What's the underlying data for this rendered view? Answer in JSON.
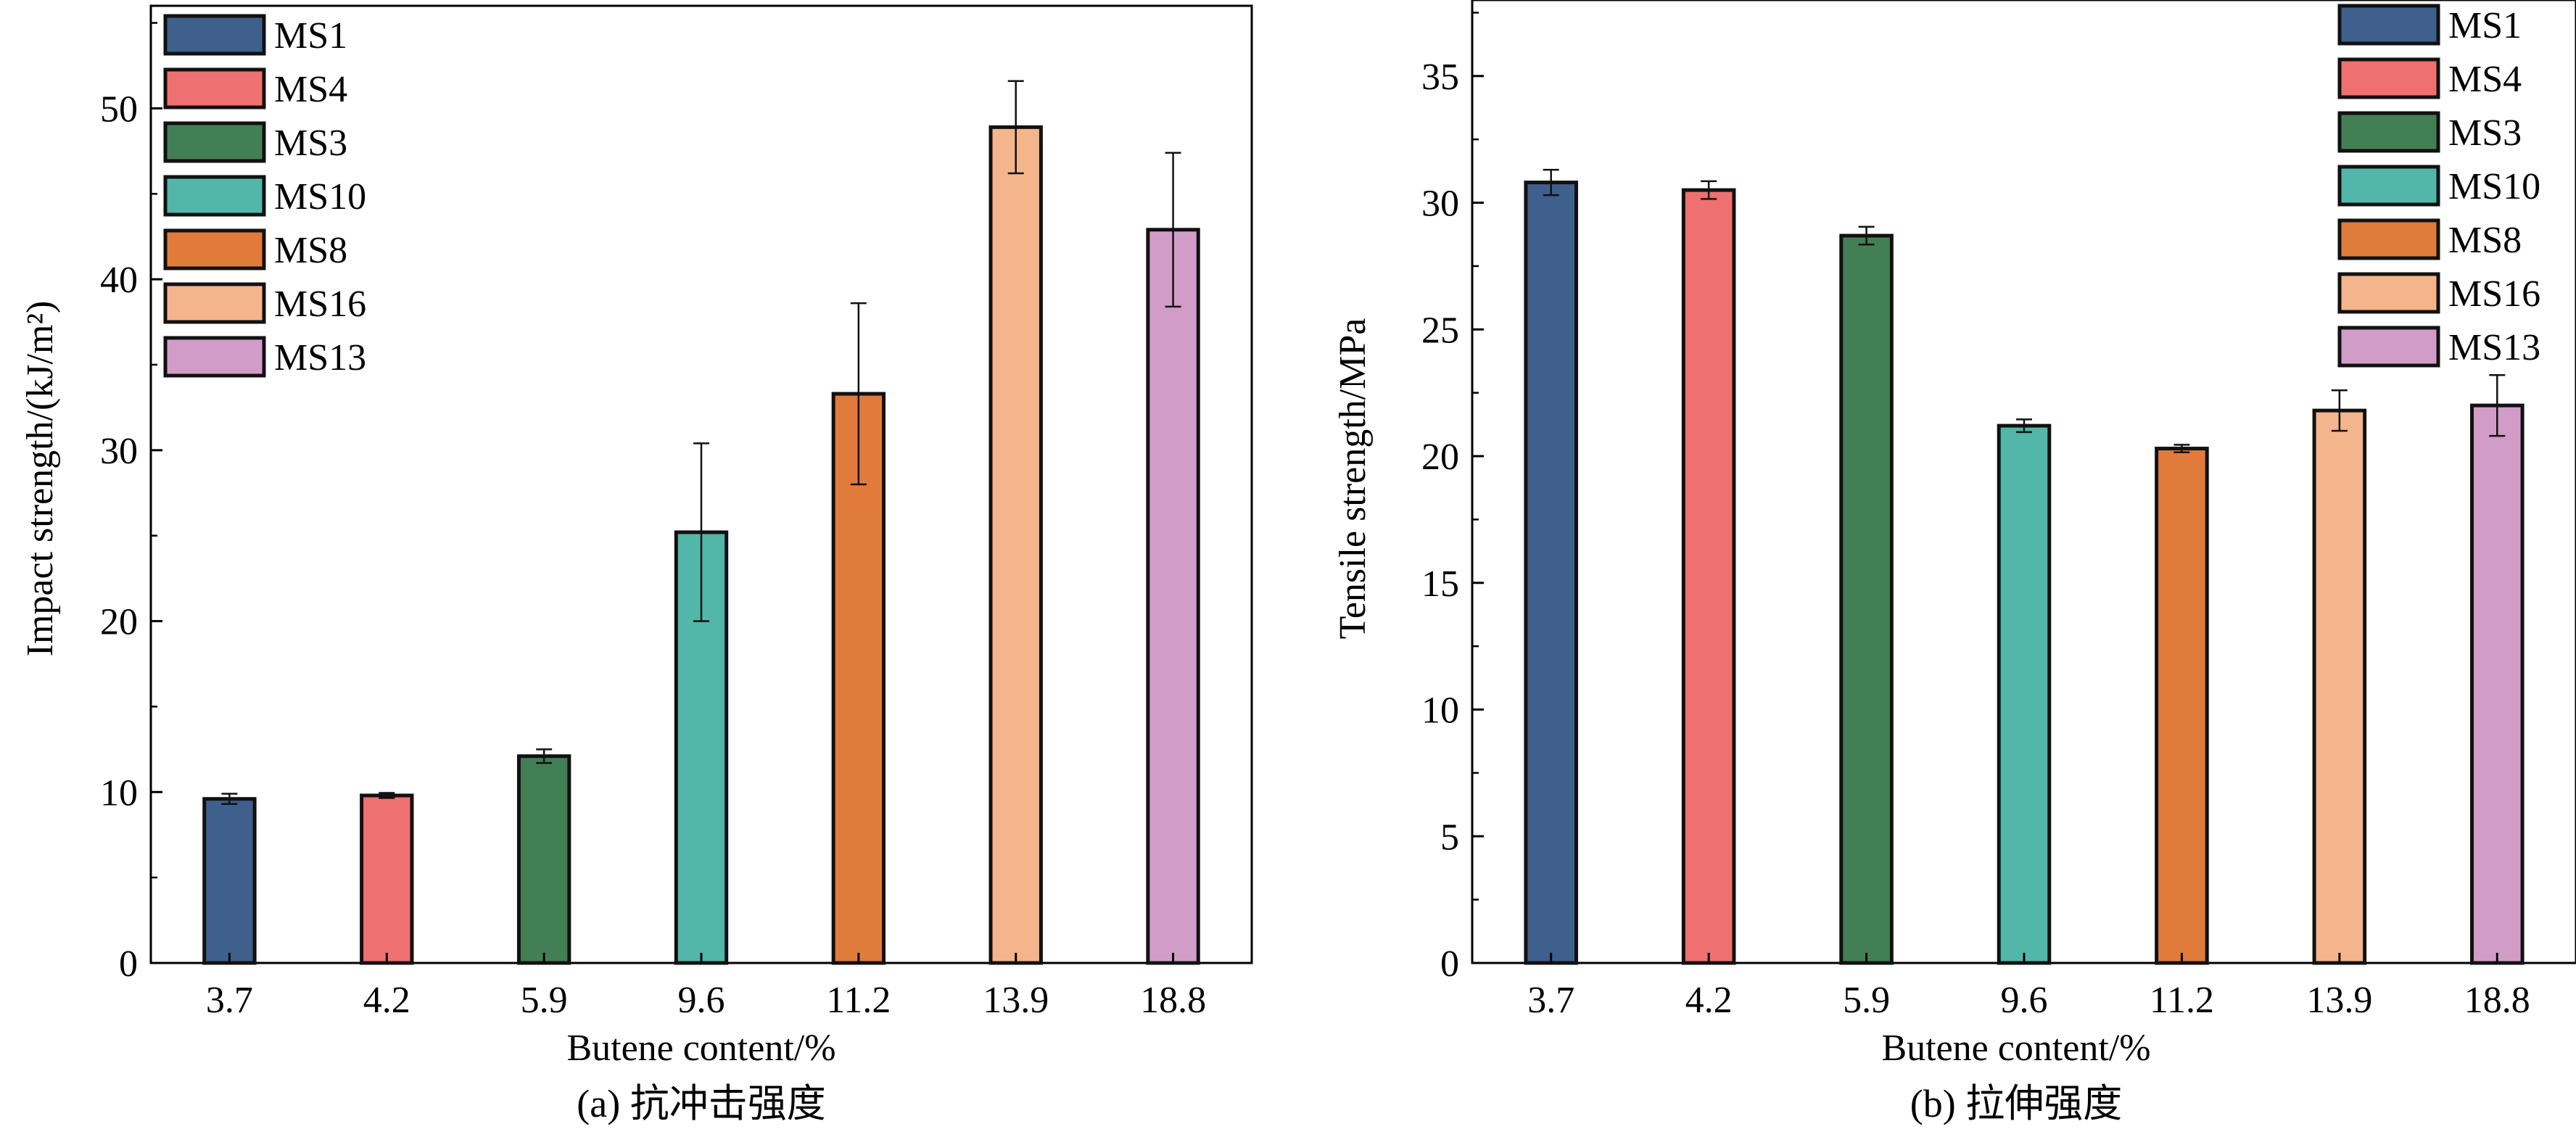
{
  "colors": {
    "MS1": "#3f5f8c",
    "MS4": "#ef7070",
    "MS3": "#437f55",
    "MS10": "#52b7a8",
    "MS8": "#e07b3c",
    "MS16": "#f5b58c",
    "MS13": "#d19dc8"
  },
  "chart_data": [
    {
      "type": "bar",
      "caption": "(a) 抗冲击强度",
      "xlabel": "Butene content/%",
      "ylabel": "Impact strength/(kJ/m²)",
      "categories": [
        "3.7",
        "4.2",
        "5.9",
        "9.6",
        "11.2",
        "13.9",
        "18.8"
      ],
      "series_names": [
        "MS1",
        "MS4",
        "MS3",
        "MS10",
        "MS8",
        "MS16",
        "MS13"
      ],
      "values": [
        9.6,
        9.8,
        12.1,
        25.2,
        33.3,
        48.9,
        42.9
      ],
      "errors": [
        0.3,
        0.15,
        0.4,
        5.2,
        5.3,
        2.7,
        4.5
      ],
      "ylim": [
        0,
        56
      ],
      "yticks": [
        0,
        10,
        20,
        30,
        40,
        50
      ],
      "legend_position": "top-left"
    },
    {
      "type": "bar",
      "caption": "(b) 拉伸强度",
      "xlabel": "Butene content/%",
      "ylabel": "Tensile strength/MPa",
      "categories": [
        "3.7",
        "4.2",
        "5.9",
        "9.6",
        "11.2",
        "13.9",
        "18.8"
      ],
      "series_names": [
        "MS1",
        "MS4",
        "MS3",
        "MS10",
        "MS8",
        "MS16",
        "MS13"
      ],
      "values": [
        30.8,
        30.5,
        28.7,
        21.2,
        20.3,
        21.8,
        22.0
      ],
      "errors": [
        0.5,
        0.35,
        0.35,
        0.25,
        0.15,
        0.8,
        1.2
      ],
      "ylim": [
        0,
        38
      ],
      "yticks": [
        0,
        5,
        10,
        15,
        20,
        25,
        30,
        35
      ],
      "legend_position": "top-right"
    }
  ]
}
